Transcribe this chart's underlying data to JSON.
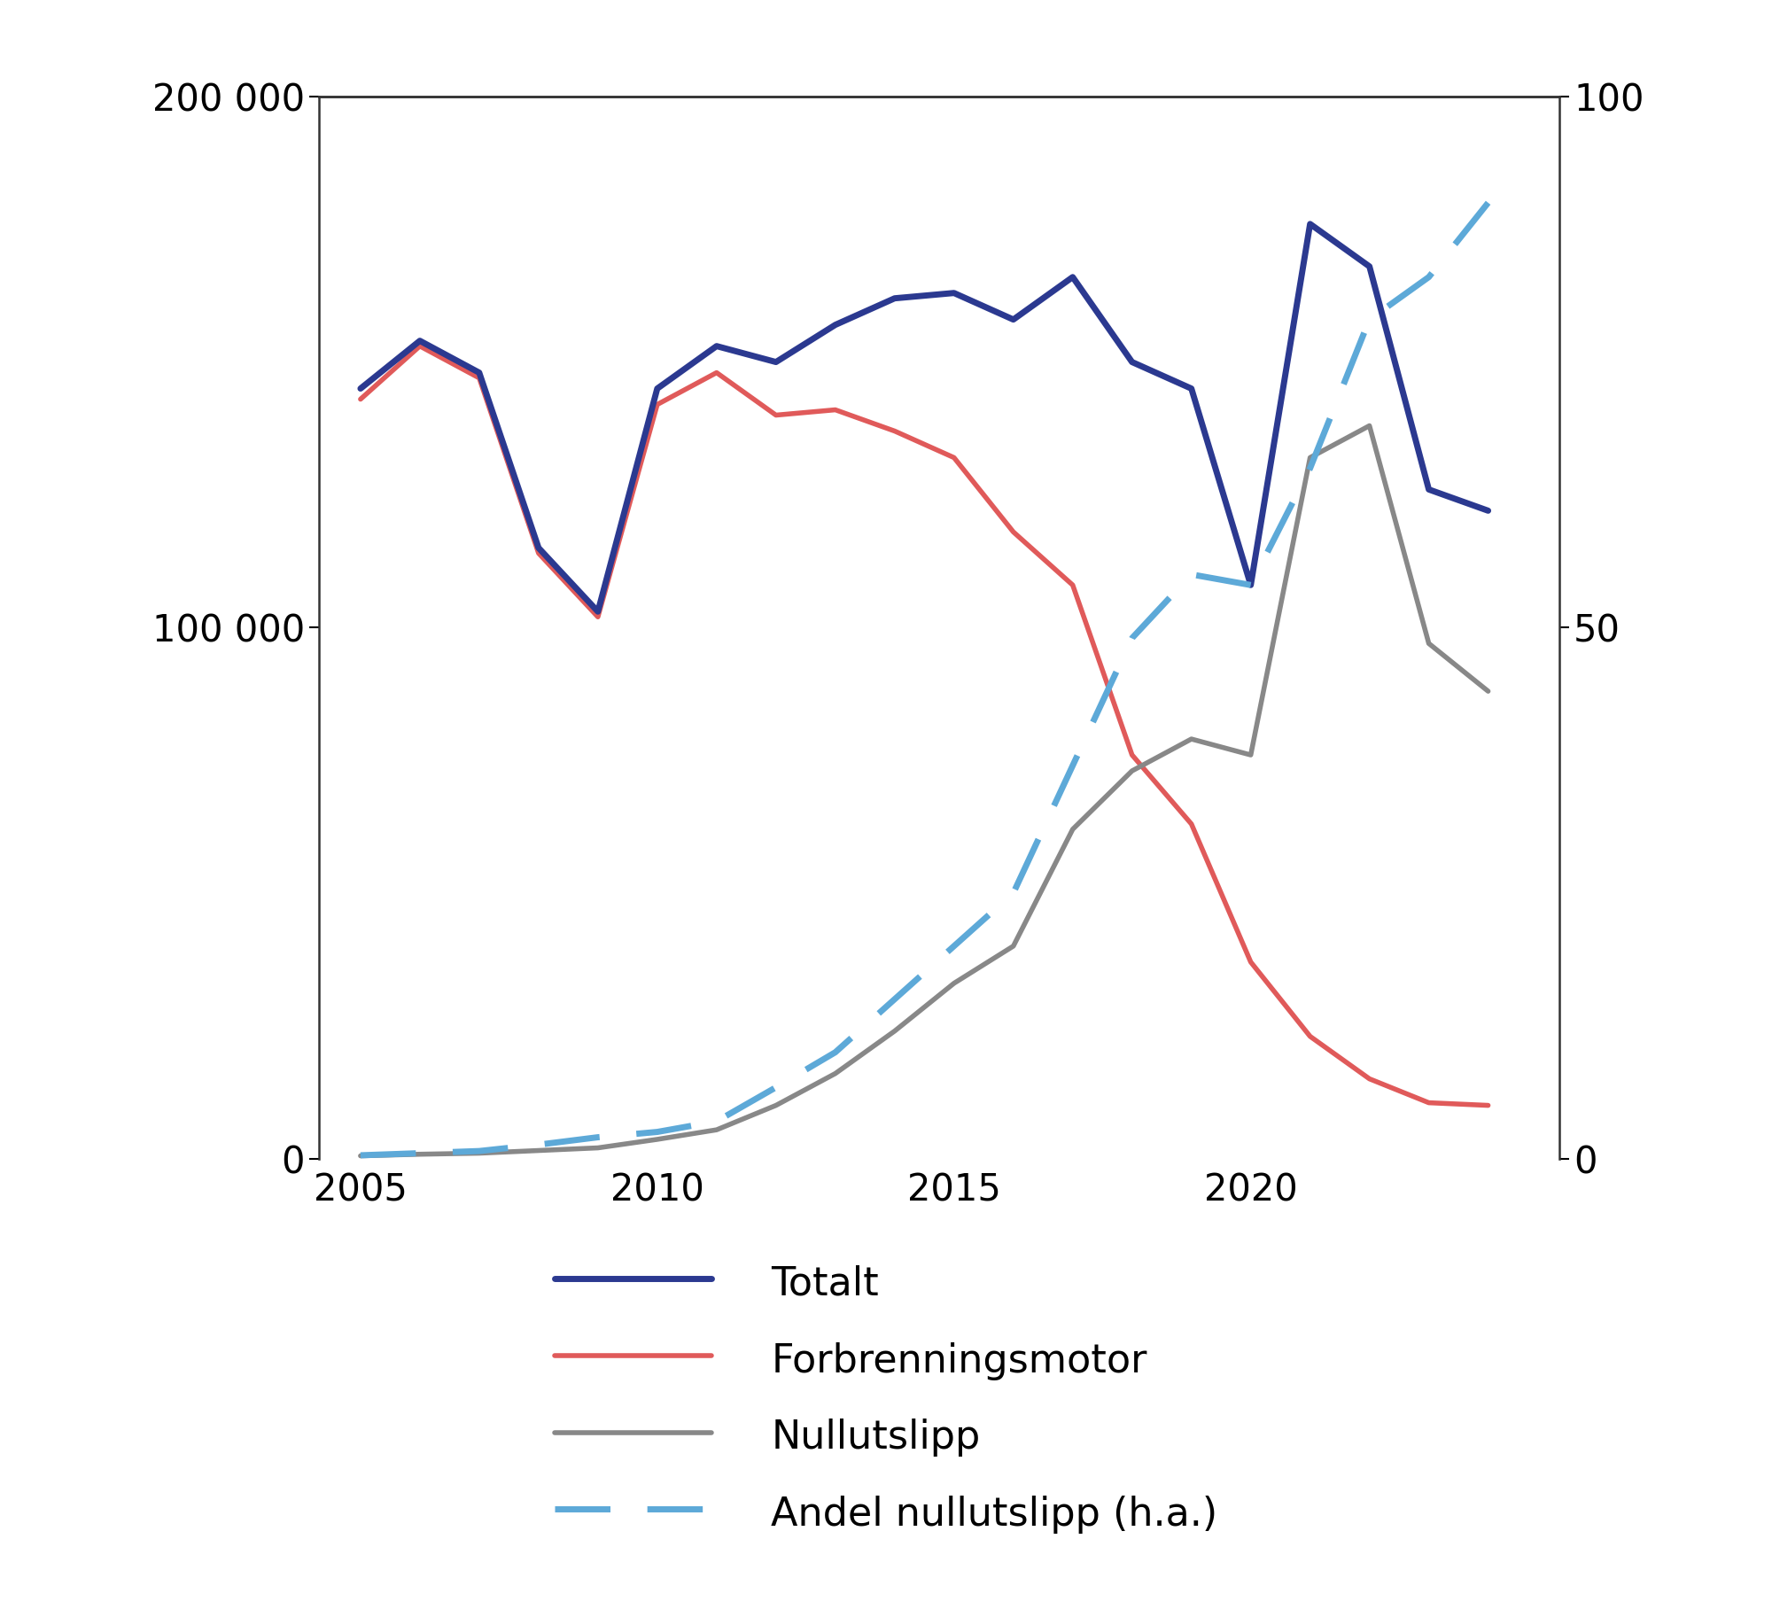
{
  "years": [
    2005,
    2006,
    2007,
    2008,
    2009,
    2010,
    2011,
    2012,
    2013,
    2014,
    2015,
    2016,
    2017,
    2018,
    2019,
    2020,
    2021,
    2022,
    2023,
    2024
  ],
  "totalt": [
    145000,
    154000,
    148000,
    115000,
    103000,
    145000,
    153000,
    150000,
    157000,
    162000,
    163000,
    158000,
    166000,
    150000,
    145000,
    108000,
    176000,
    168000,
    126000,
    122000
  ],
  "forbrenningsmotor": [
    143000,
    153000,
    147000,
    114000,
    102000,
    142000,
    148000,
    140000,
    141000,
    137000,
    132000,
    118000,
    108000,
    76000,
    63000,
    37000,
    23000,
    15000,
    10500,
    10000
  ],
  "nullutslipp": [
    500,
    800,
    1000,
    1500,
    2000,
    3600,
    5400,
    10000,
    16000,
    24000,
    33000,
    40000,
    62000,
    73000,
    79000,
    76000,
    132000,
    138000,
    97000,
    88000
  ],
  "andel_nullutslipp": [
    0.3,
    0.5,
    0.7,
    1.3,
    2.0,
    2.5,
    3.5,
    6.7,
    10.0,
    15.0,
    20.0,
    25.0,
    37.0,
    49.0,
    55.0,
    54.0,
    65.0,
    79.0,
    83.0,
    90.0
  ],
  "color_totalt": "#2b3990",
  "color_forbrenning": "#e05a5a",
  "color_nullutslipp": "#888888",
  "color_andel": "#5da9d8",
  "ylim_left": [
    0,
    200000
  ],
  "ylim_right": [
    0,
    100
  ],
  "yticks_left": [
    0,
    100000,
    200000
  ],
  "yticks_right": [
    0,
    50,
    100
  ],
  "ytick_labels_left": [
    "0",
    "100 000",
    "200 000"
  ],
  "ytick_labels_right": [
    "0",
    "50",
    "100"
  ],
  "xticks": [
    2005,
    2010,
    2015,
    2020
  ],
  "xtick_labels": [
    "2005",
    "2010",
    "2015",
    "2020"
  ],
  "legend_labels": [
    "Totalt",
    "Forbrenningsmotor",
    "Nullutslipp",
    "Andel nullutslipp (h.a.)"
  ],
  "background_color": "#ffffff",
  "lw_totalt": 5.0,
  "lw_forbrenning": 4.0,
  "lw_nullutslipp": 4.0,
  "lw_andel": 5.0,
  "tick_fontsize": 30,
  "legend_fontsize": 32
}
